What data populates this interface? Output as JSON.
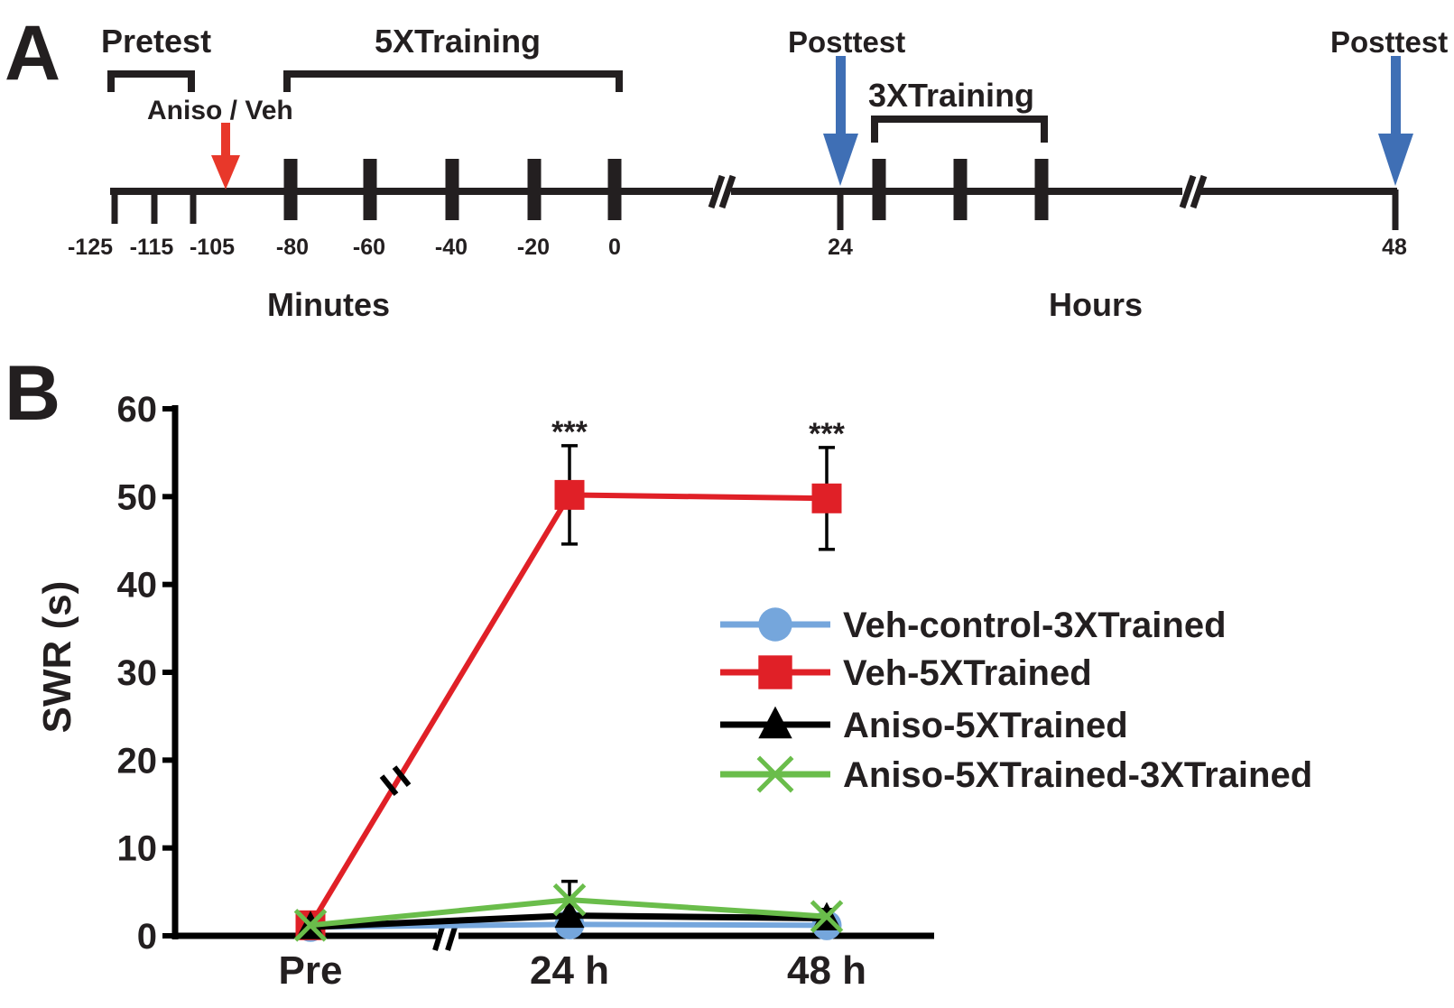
{
  "panel_a": {
    "label": "A",
    "pretest": "Pretest",
    "training_5x": "5XTraining",
    "drug": "Aniso / Veh",
    "posttest_1": "Posttest",
    "training_3x": "3XTraining",
    "posttest_2": "Posttest",
    "minute_ticks": [
      "-125",
      "-115",
      "-105",
      "-80",
      "-60",
      "-40",
      "-20",
      "0"
    ],
    "hour_ticks": [
      "24",
      "48"
    ],
    "minutes_label": "Minutes",
    "hours_label": "Hours",
    "colors": {
      "drug_arrow": "#e8382a",
      "posttest_arrow": "#3f6fb5"
    }
  },
  "panel_b": {
    "label": "B"
  },
  "chart_data": {
    "type": "line",
    "title": "",
    "xlabel": "",
    "ylabel": "SWR (s)",
    "categories": [
      "Pre",
      "24 h",
      "48 h"
    ],
    "ylim": [
      0,
      60
    ],
    "yticks": [
      "0",
      "10",
      "20",
      "30",
      "40",
      "50",
      "60"
    ],
    "grid": false,
    "legend": "right",
    "axis_break": "between Pre and 24 h",
    "significance": [
      "",
      "***",
      "***"
    ],
    "series": [
      {
        "name": "Veh-control-3XTrained",
        "color": "#75a6dc",
        "marker": "circle",
        "values": [
          1.0,
          1.3,
          1.2
        ],
        "err": [
          0,
          0,
          0
        ]
      },
      {
        "name": "Veh-5XTrained",
        "color": "#e02027",
        "marker": "square",
        "values": [
          1.2,
          50.2,
          49.8
        ],
        "err": [
          0,
          5.6,
          5.8
        ]
      },
      {
        "name": "Aniso-5XTrained",
        "color": "#000000",
        "marker": "triangle",
        "values": [
          1.0,
          2.3,
          2.0
        ],
        "err": [
          0,
          0,
          0
        ]
      },
      {
        "name": "Aniso-5XTrained-3XTrained",
        "color": "#6abd4b",
        "marker": "x",
        "values": [
          1.2,
          4.1,
          2.2
        ],
        "err": [
          0,
          2.1,
          0.8
        ]
      }
    ]
  }
}
